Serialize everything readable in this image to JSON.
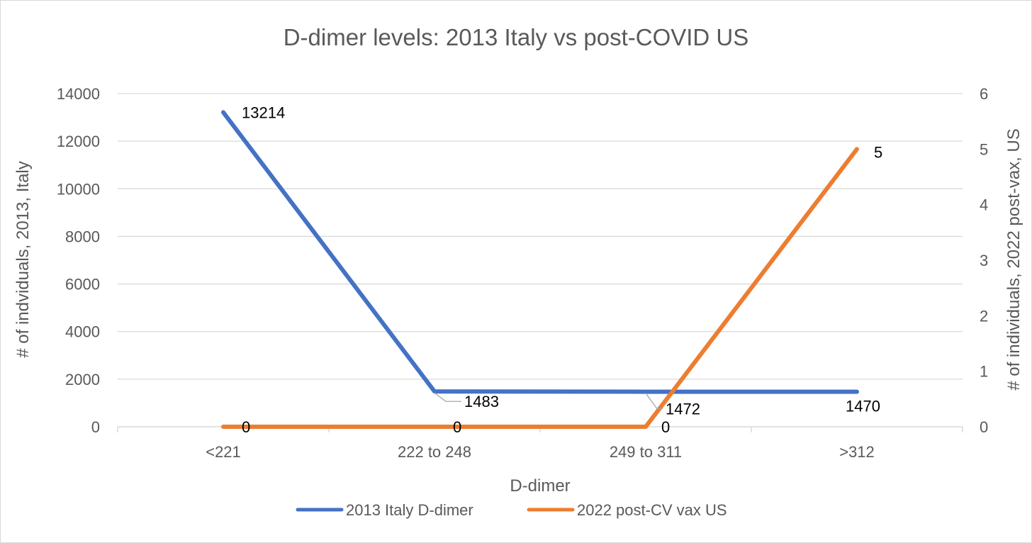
{
  "chart_data": {
    "type": "line",
    "title": "D-dimer levels: 2013 Italy vs post-COVID US",
    "xlabel": "D-dimer",
    "ylabel": "# of indviduals, 2013, Italy",
    "y2label": "# of individuals, 2022 post-vax, US",
    "categories": [
      "<221",
      "222 to 248",
      "249 to 311",
      ">312"
    ],
    "ylim": [
      0,
      14000
    ],
    "yticks": [
      "0",
      "2000",
      "4000",
      "6000",
      "8000",
      "10000",
      "12000",
      "14000"
    ],
    "y2lim": [
      0,
      6
    ],
    "y2ticks": [
      "0",
      "1",
      "2",
      "3",
      "4",
      "5",
      "6"
    ],
    "grid": true,
    "legend_position": "bottom",
    "series": [
      {
        "name": "2013 Italy D-dimer",
        "axis": "primary",
        "color": "#4472C4",
        "values": [
          13214,
          1483,
          1472,
          1470
        ],
        "labels": [
          "13214",
          "1483",
          "1472",
          "1470"
        ]
      },
      {
        "name": "2022 post-CV vax US",
        "axis": "secondary",
        "color": "#ED7D31",
        "values": [
          0,
          0,
          0,
          5
        ],
        "labels": [
          "0",
          "0",
          "0",
          "5"
        ]
      }
    ]
  }
}
